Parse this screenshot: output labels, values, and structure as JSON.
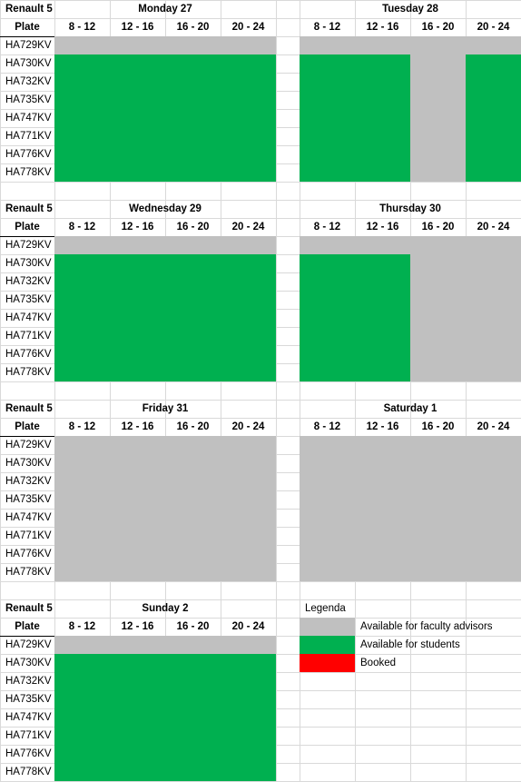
{
  "vehicle_label": "Renault 5",
  "plate_header": "Plate",
  "time_slots": [
    "8 - 12",
    "12 - 16",
    "16 - 20",
    "20 - 24"
  ],
  "plates": [
    "HA729KV",
    "HA730KV",
    "HA732KV",
    "HA735KV",
    "HA747KV",
    "HA771KV",
    "HA776KV",
    "HA778KV"
  ],
  "colors": {
    "gray": "#c0c0c0",
    "green": "#00b050",
    "red": "#ff0000",
    "grid": "#d9d9d9"
  },
  "days": [
    {
      "name": "Monday 27",
      "row": [
        [
          0,
          0,
          0,
          0
        ],
        [
          1,
          1,
          1,
          1
        ],
        [
          1,
          1,
          1,
          1
        ],
        [
          1,
          1,
          1,
          1
        ],
        [
          1,
          1,
          1,
          1
        ],
        [
          1,
          1,
          1,
          1
        ],
        [
          1,
          1,
          1,
          1
        ],
        [
          1,
          1,
          1,
          1
        ]
      ]
    },
    {
      "name": "Tuesday 28",
      "row": [
        [
          0,
          0,
          0,
          0
        ],
        [
          1,
          1,
          0,
          1
        ],
        [
          1,
          1,
          0,
          1
        ],
        [
          1,
          1,
          0,
          1
        ],
        [
          1,
          1,
          0,
          1
        ],
        [
          1,
          1,
          0,
          1
        ],
        [
          1,
          1,
          0,
          1
        ],
        [
          1,
          1,
          0,
          1
        ]
      ]
    },
    {
      "name": "Wednesday 29",
      "row": [
        [
          0,
          0,
          0,
          0
        ],
        [
          1,
          1,
          1,
          1
        ],
        [
          1,
          1,
          1,
          1
        ],
        [
          1,
          1,
          1,
          1
        ],
        [
          1,
          1,
          1,
          1
        ],
        [
          1,
          1,
          1,
          1
        ],
        [
          1,
          1,
          1,
          1
        ],
        [
          1,
          1,
          1,
          1
        ]
      ]
    },
    {
      "name": "Thursday 30",
      "row": [
        [
          0,
          0,
          0,
          0
        ],
        [
          1,
          1,
          0,
          0
        ],
        [
          1,
          1,
          0,
          0
        ],
        [
          1,
          1,
          0,
          0
        ],
        [
          1,
          1,
          0,
          0
        ],
        [
          1,
          1,
          0,
          0
        ],
        [
          1,
          1,
          0,
          0
        ],
        [
          1,
          1,
          0,
          0
        ]
      ]
    },
    {
      "name": "Friday 31",
      "row": [
        [
          0,
          0,
          0,
          0
        ],
        [
          0,
          0,
          0,
          0
        ],
        [
          0,
          0,
          0,
          0
        ],
        [
          0,
          0,
          0,
          0
        ],
        [
          0,
          0,
          0,
          0
        ],
        [
          0,
          0,
          0,
          0
        ],
        [
          0,
          0,
          0,
          0
        ],
        [
          0,
          0,
          0,
          0
        ]
      ]
    },
    {
      "name": "Saturday 1",
      "row": [
        [
          0,
          0,
          0,
          0
        ],
        [
          0,
          0,
          0,
          0
        ],
        [
          0,
          0,
          0,
          0
        ],
        [
          0,
          0,
          0,
          0
        ],
        [
          0,
          0,
          0,
          0
        ],
        [
          0,
          0,
          0,
          0
        ],
        [
          0,
          0,
          0,
          0
        ],
        [
          0,
          0,
          0,
          0
        ]
      ]
    },
    {
      "name": "Sunday 2",
      "row": [
        [
          0,
          0,
          0,
          0
        ],
        [
          1,
          1,
          1,
          1
        ],
        [
          1,
          1,
          1,
          1
        ],
        [
          1,
          1,
          1,
          1
        ],
        [
          1,
          1,
          1,
          1
        ],
        [
          1,
          1,
          1,
          1
        ],
        [
          1,
          1,
          1,
          1
        ],
        [
          1,
          1,
          1,
          1
        ]
      ]
    }
  ],
  "legend": {
    "title": "Legenda",
    "items": [
      {
        "label": "Available for faculty advisors",
        "color": "#c0c0c0"
      },
      {
        "label": "Available for students",
        "color": "#00b050"
      },
      {
        "label": "Booked",
        "color": "#ff0000"
      }
    ]
  }
}
